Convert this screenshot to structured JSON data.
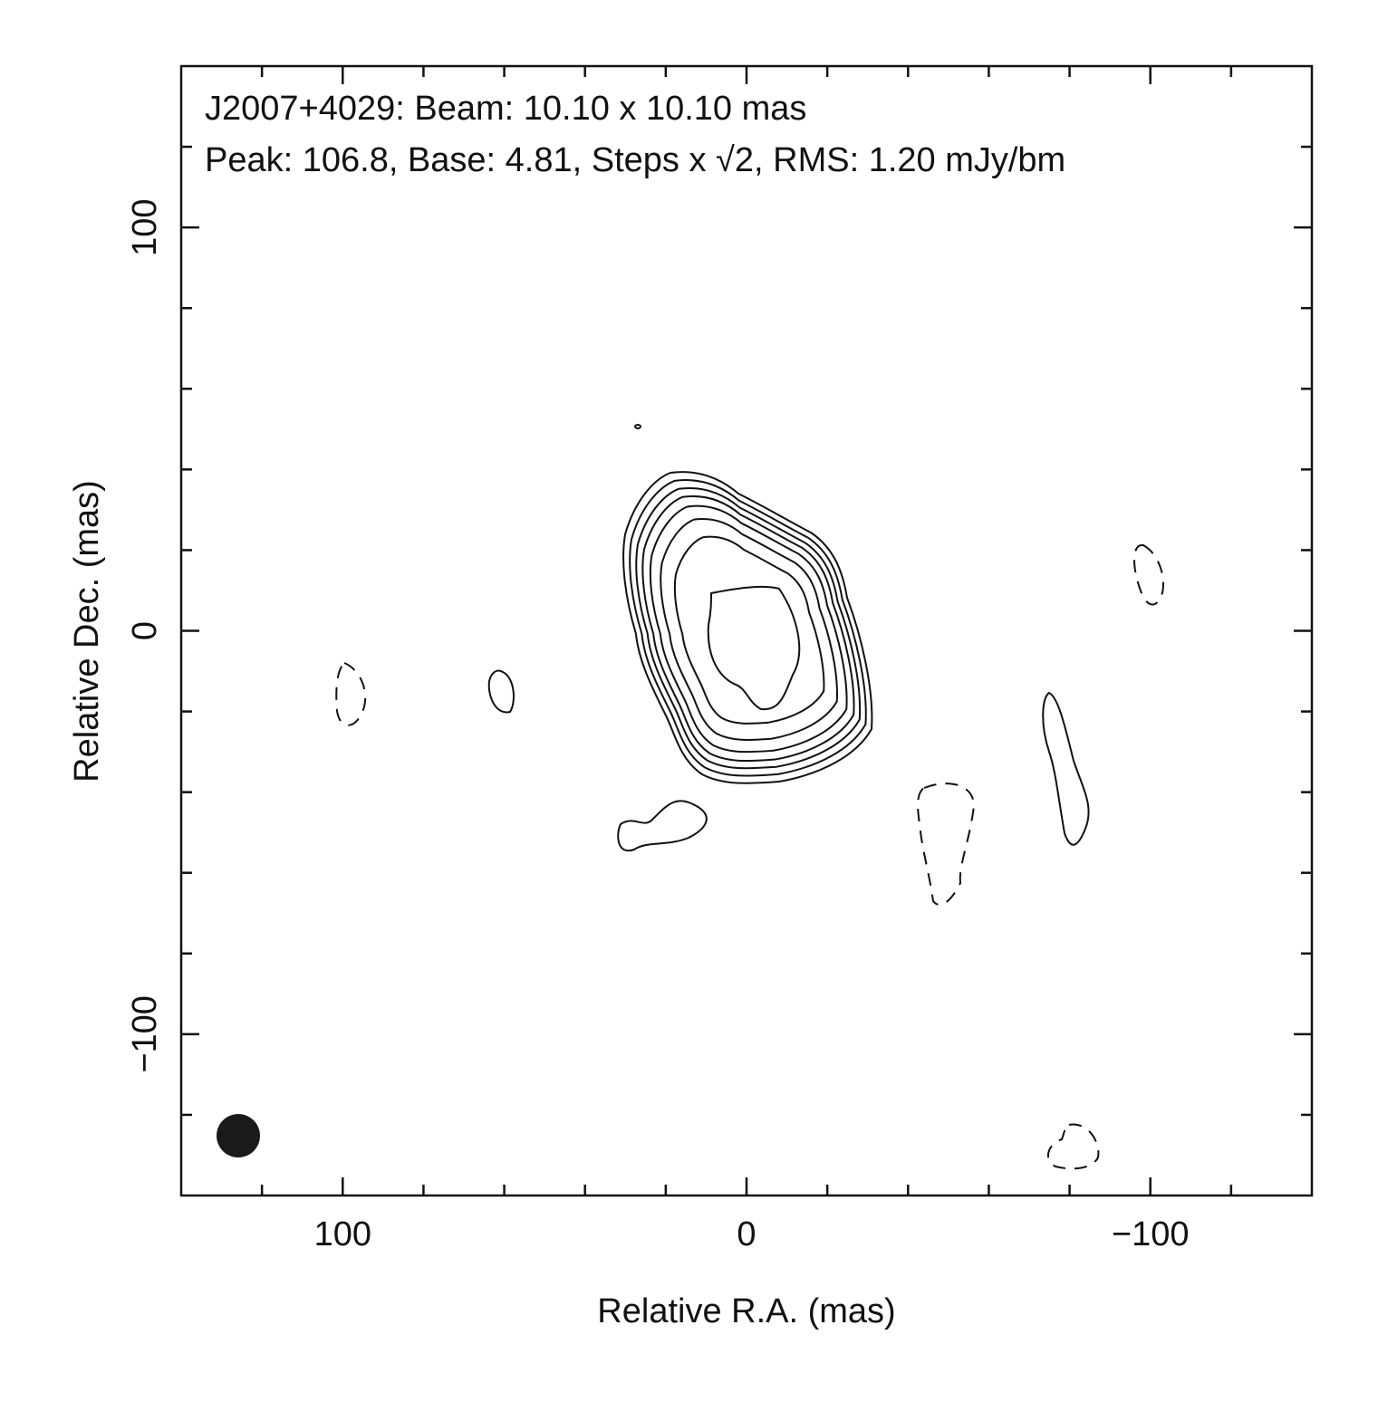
{
  "chart_data": {
    "type": "contour",
    "title": "J2007+4029: Beam: 10.10 x 10.10 mas",
    "subtitle": "Peak: 106.8, Base: 4.81, Steps x √2, RMS: 1.20 mJy/bm",
    "x_label": "Relative R.A. (mas)",
    "y_label": "Relative Dec. (mas)",
    "xlim": [
      140,
      -140
    ],
    "ylim": [
      -140,
      140
    ],
    "xticks": [
      100,
      0,
      {
        "value": -100,
        "label": "−100"
      }
    ],
    "yticks": [
      {
        "value": -100,
        "label": "−100"
      },
      0,
      100
    ],
    "minor_xticks": [
      120,
      80,
      60,
      40,
      20,
      -20,
      -40,
      -60,
      -80,
      -120
    ],
    "minor_yticks": [
      -120,
      -80,
      -60,
      -40,
      -20,
      20,
      40,
      60,
      80,
      120
    ]
  }
}
